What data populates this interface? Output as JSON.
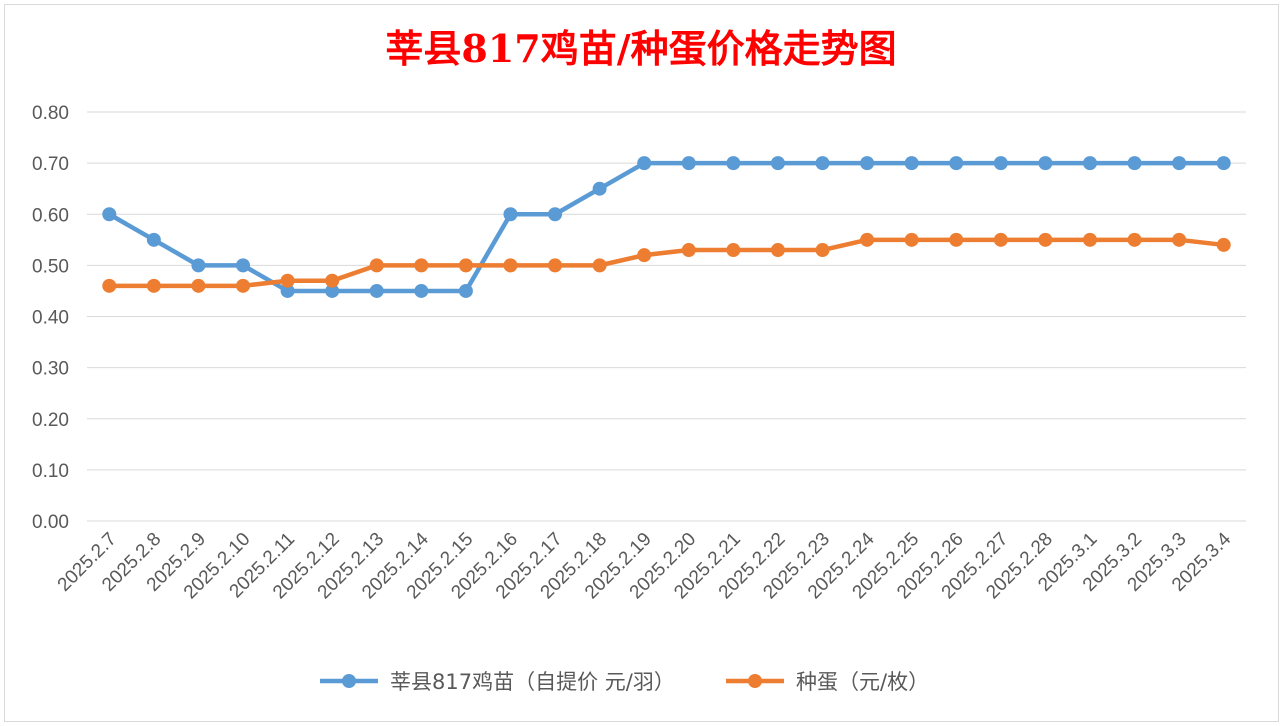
{
  "chart_data": {
    "type": "line",
    "title": "莘县817鸡苗/种蛋价格走势图",
    "categories": [
      "2025.2.7",
      "2025.2.8",
      "2025.2.9",
      "2025.2.10",
      "2025.2.11",
      "2025.2.12",
      "2025.2.13",
      "2025.2.14",
      "2025.2.15",
      "2025.2.16",
      "2025.2.17",
      "2025.2.18",
      "2025.2.19",
      "2025.2.20",
      "2025.2.21",
      "2025.2.22",
      "2025.2.23",
      "2025.2.24",
      "2025.2.25",
      "2025.2.26",
      "2025.2.27",
      "2025.2.28",
      "2025.3.1",
      "2025.3.2",
      "2025.3.3",
      "2025.3.4"
    ],
    "series": [
      {
        "name": "莘县817鸡苗（自提价 元/羽）",
        "color": "#5b9bd5",
        "values": [
          0.6,
          0.55,
          0.5,
          0.5,
          0.45,
          0.45,
          0.45,
          0.45,
          0.45,
          0.6,
          0.6,
          0.65,
          0.7,
          0.7,
          0.7,
          0.7,
          0.7,
          0.7,
          0.7,
          0.7,
          0.7,
          0.7,
          0.7,
          0.7,
          0.7,
          0.7
        ]
      },
      {
        "name": "种蛋（元/枚）",
        "color": "#ed7d31",
        "values": [
          0.46,
          0.46,
          0.46,
          0.46,
          0.47,
          0.47,
          0.5,
          0.5,
          0.5,
          0.5,
          0.5,
          0.5,
          0.52,
          0.53,
          0.53,
          0.53,
          0.53,
          0.55,
          0.55,
          0.55,
          0.55,
          0.55,
          0.55,
          0.55,
          0.55,
          0.54
        ]
      }
    ],
    "ylim": [
      0,
      0.8
    ],
    "yticks": [
      "0.00",
      "0.10",
      "0.20",
      "0.30",
      "0.40",
      "0.50",
      "0.60",
      "0.70",
      "0.80"
    ],
    "grid": true,
    "legend": "bottom",
    "xlabel": "",
    "ylabel": ""
  }
}
